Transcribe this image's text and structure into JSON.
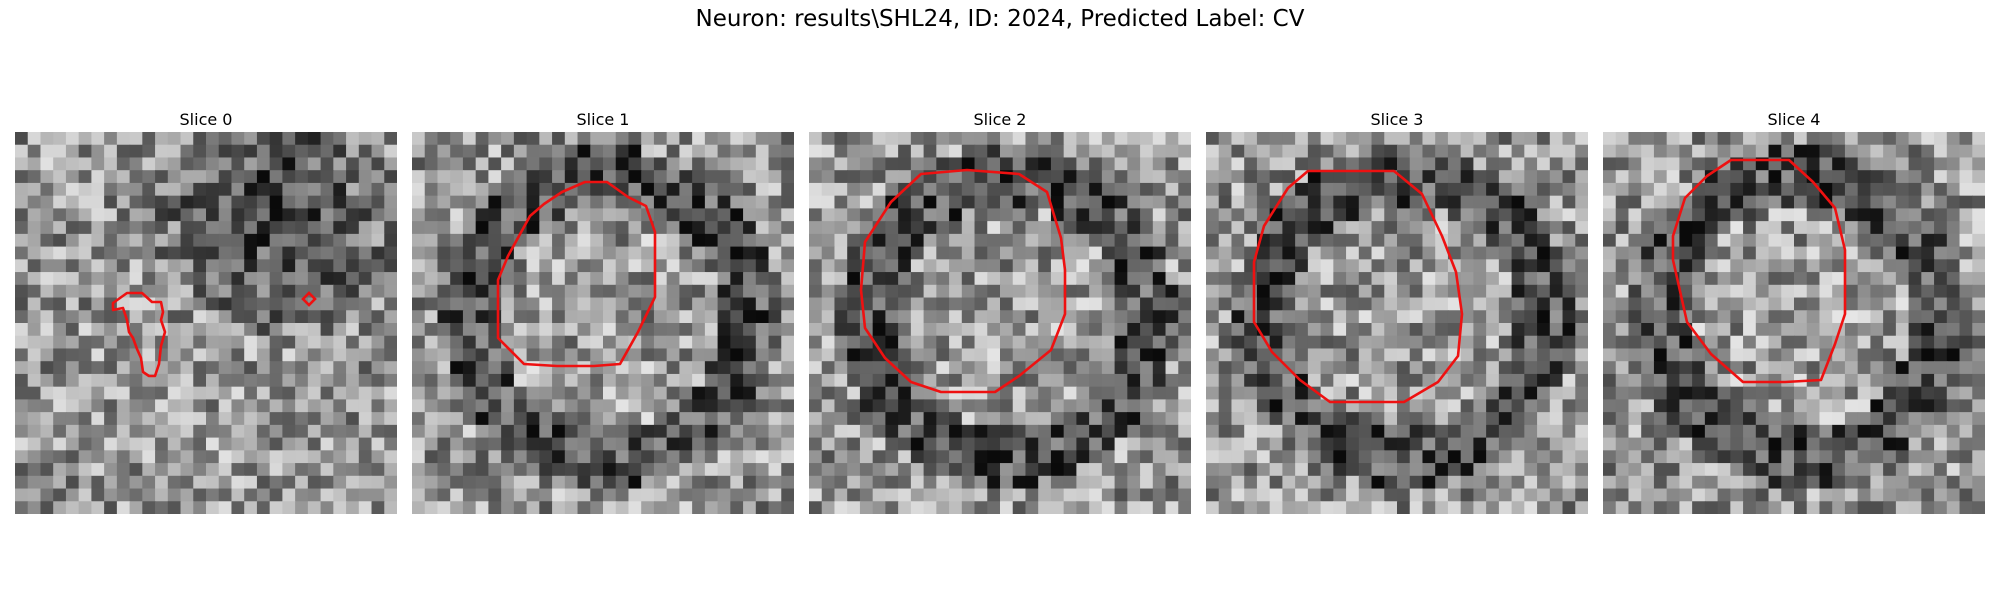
{
  "figure": {
    "title": "Neuron: results\\SHL24, ID: 2024, Predicted Label: CV"
  },
  "panels": [
    {
      "title": "Slice 0",
      "seed": 11,
      "dark_region": "upper-right"
    },
    {
      "title": "Slice 1",
      "seed": 23,
      "dark_region": "ring"
    },
    {
      "title": "Slice 2",
      "seed": 37,
      "dark_region": "ring"
    },
    {
      "title": "Slice 3",
      "seed": 41,
      "dark_region": "ring"
    },
    {
      "title": "Slice 4",
      "seed": 53,
      "dark_region": "ring"
    }
  ],
  "colors": {
    "contour": "#ee1111",
    "background": "#ffffff"
  },
  "colormap": "gray"
}
